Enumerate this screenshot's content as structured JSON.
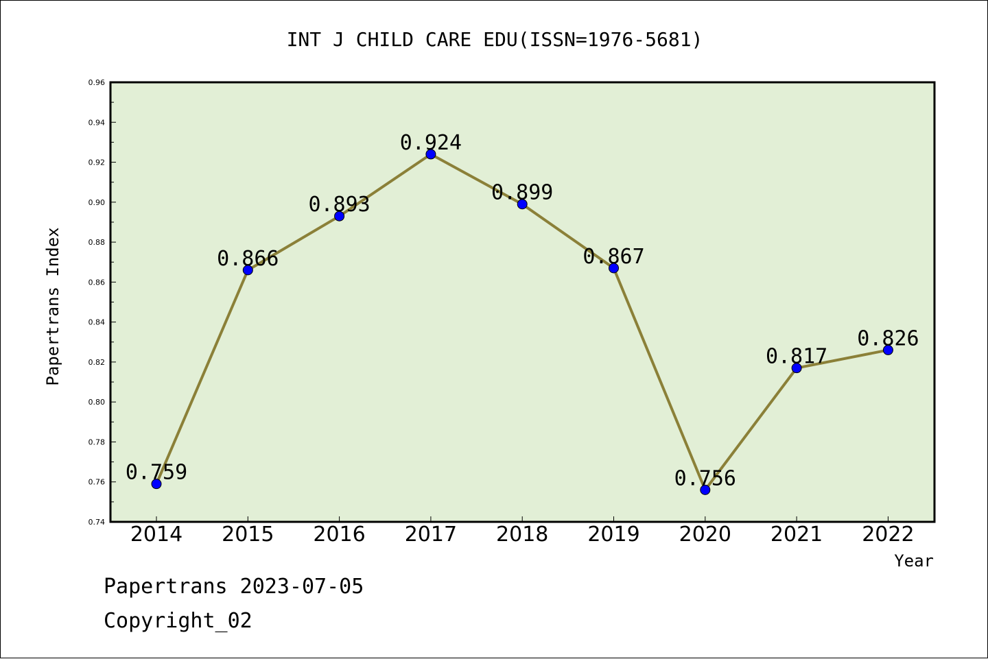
{
  "chart_data": {
    "type": "line",
    "title": "INT J CHILD CARE EDU(ISSN=1976-5681)",
    "xlabel": "Year",
    "ylabel": "Papertrans Index",
    "categories": [
      "2014",
      "2015",
      "2016",
      "2017",
      "2018",
      "2019",
      "2020",
      "2021",
      "2022"
    ],
    "values": [
      0.759,
      0.866,
      0.893,
      0.924,
      0.899,
      0.867,
      0.756,
      0.817,
      0.826
    ],
    "value_labels": [
      "0.759",
      "0.866",
      "0.893",
      "0.924",
      "0.899",
      "0.867",
      "0.756",
      "0.817",
      "0.826"
    ],
    "ylim": [
      0.74,
      0.96
    ],
    "yticks": [
      "0.74",
      "0.76",
      "0.78",
      "0.80",
      "0.82",
      "0.84",
      "0.86",
      "0.88",
      "0.90",
      "0.92",
      "0.94",
      "0.96"
    ],
    "grid": false,
    "colors": {
      "plot_background": "#e2efd6",
      "line": "#8b8038",
      "marker": "#0000ff"
    }
  },
  "footer": {
    "line1": "Papertrans 2023-07-05",
    "line2": "Copyright_02"
  }
}
